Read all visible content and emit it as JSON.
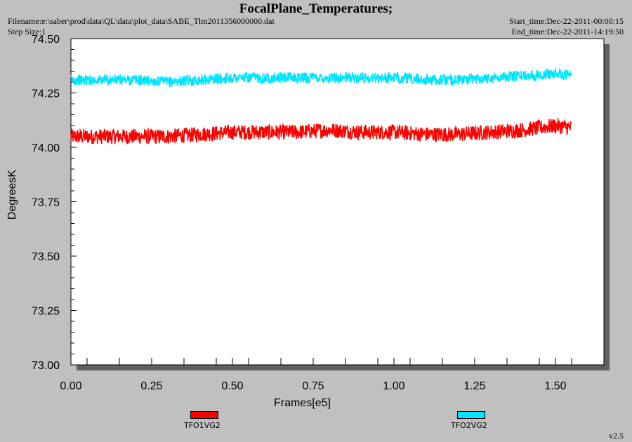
{
  "header": {
    "title": "FocalPlane_Temperatures;",
    "filename": "Filename:e:\\saber\\prod\\data\\QL\\data\\plot_data\\SABE_Tlm2011356000000.dat",
    "step_size": "Step Size:1",
    "start_time": "Start_time:Dec-22-2011-00:00:15",
    "end_time": "End_time:Dec-22-2011-14:19:50"
  },
  "version": "v2.5",
  "colors": {
    "series1": "#ff0000",
    "series2": "#00e5ff",
    "plot_bg": "#ffffff",
    "page_bg": "#c0c0c0"
  },
  "chart_data": {
    "type": "line",
    "title": "FocalPlane_Temperatures;",
    "xlabel": "Frames[e5]",
    "ylabel": "DegreesK",
    "xlim": [
      0,
      1.65
    ],
    "ylim": [
      73.0,
      74.5
    ],
    "xticks": [
      "0.00",
      "0.25",
      "0.50",
      "0.75",
      "1.00",
      "1.25",
      "1.50"
    ],
    "yticks": [
      "74.50",
      "74.25",
      "74.00",
      "73.75",
      "73.50",
      "73.25",
      "73.00"
    ],
    "legend_position": "bottom",
    "grid": false,
    "series": [
      {
        "name": "TFO1VG2",
        "color": "#ff0000",
        "x": [
          0.0,
          0.1,
          0.2,
          0.3,
          0.4,
          0.5,
          0.6,
          0.7,
          0.8,
          0.9,
          1.0,
          1.1,
          1.2,
          1.3,
          1.4,
          1.5,
          1.55
        ],
        "y": [
          74.05,
          74.05,
          74.05,
          74.05,
          74.06,
          74.07,
          74.07,
          74.07,
          74.08,
          74.07,
          74.07,
          74.06,
          74.06,
          74.07,
          74.08,
          74.1,
          74.09
        ],
        "noise": 0.035
      },
      {
        "name": "TFO2VG2",
        "color": "#00e5ff",
        "x": [
          0.0,
          0.1,
          0.2,
          0.3,
          0.4,
          0.5,
          0.6,
          0.7,
          0.8,
          0.9,
          1.0,
          1.1,
          1.2,
          1.3,
          1.4,
          1.5,
          1.55
        ],
        "y": [
          74.31,
          74.31,
          74.31,
          74.3,
          74.31,
          74.32,
          74.32,
          74.32,
          74.32,
          74.32,
          74.32,
          74.31,
          74.31,
          74.32,
          74.33,
          74.34,
          74.33
        ],
        "noise": 0.025
      }
    ]
  }
}
